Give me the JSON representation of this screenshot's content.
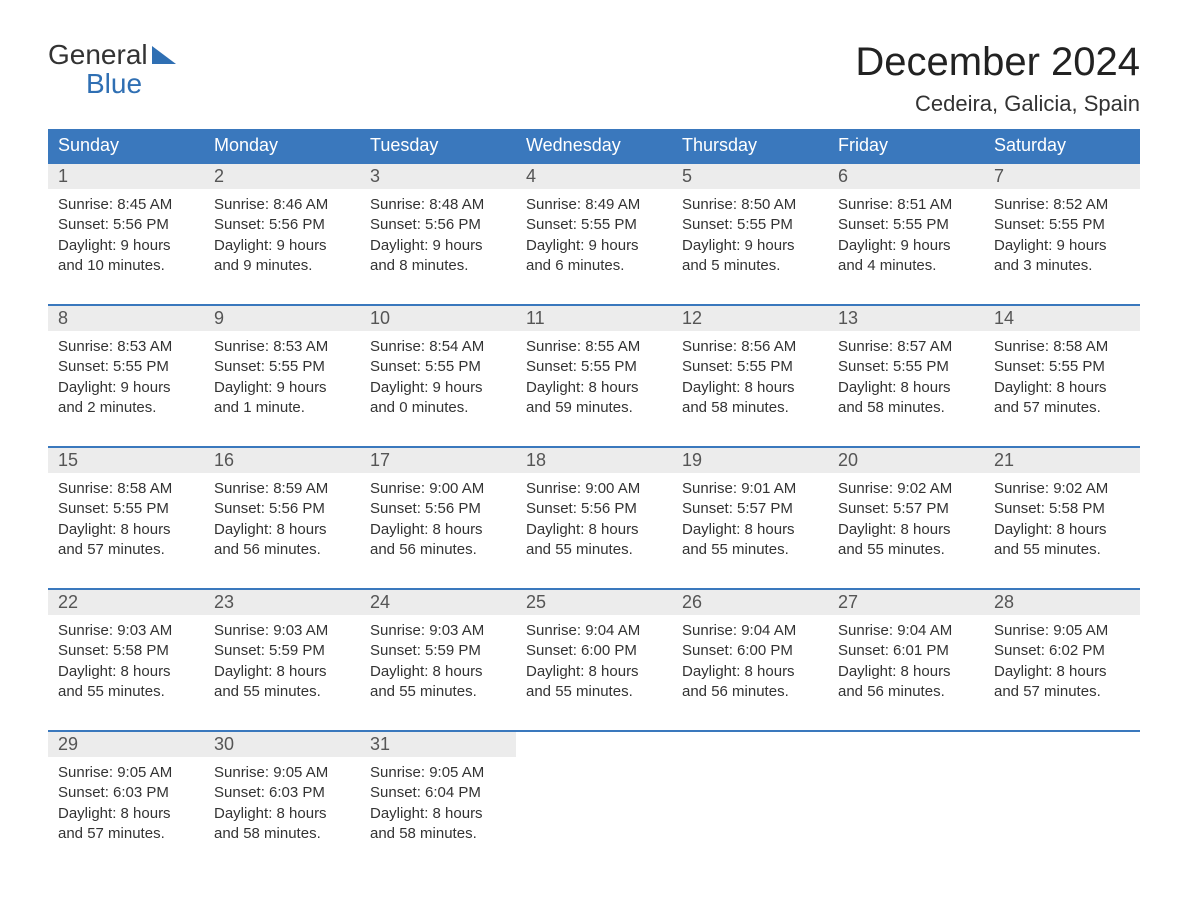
{
  "logo": {
    "line1": "General",
    "line2": "Blue"
  },
  "title": "December 2024",
  "location": "Cedeira, Galicia, Spain",
  "colors": {
    "header_bg": "#3a78bd",
    "header_text": "#ffffff",
    "daynum_bg": "#ececec",
    "cell_border": "#3a78bd",
    "text": "#333333",
    "background": "#ffffff"
  },
  "weekdays": [
    "Sunday",
    "Monday",
    "Tuesday",
    "Wednesday",
    "Thursday",
    "Friday",
    "Saturday"
  ],
  "days": [
    {
      "n": 1,
      "sunrise": "8:45 AM",
      "sunset": "5:56 PM",
      "daylight": "9 hours and 10 minutes."
    },
    {
      "n": 2,
      "sunrise": "8:46 AM",
      "sunset": "5:56 PM",
      "daylight": "9 hours and 9 minutes."
    },
    {
      "n": 3,
      "sunrise": "8:48 AM",
      "sunset": "5:56 PM",
      "daylight": "9 hours and 8 minutes."
    },
    {
      "n": 4,
      "sunrise": "8:49 AM",
      "sunset": "5:55 PM",
      "daylight": "9 hours and 6 minutes."
    },
    {
      "n": 5,
      "sunrise": "8:50 AM",
      "sunset": "5:55 PM",
      "daylight": "9 hours and 5 minutes."
    },
    {
      "n": 6,
      "sunrise": "8:51 AM",
      "sunset": "5:55 PM",
      "daylight": "9 hours and 4 minutes."
    },
    {
      "n": 7,
      "sunrise": "8:52 AM",
      "sunset": "5:55 PM",
      "daylight": "9 hours and 3 minutes."
    },
    {
      "n": 8,
      "sunrise": "8:53 AM",
      "sunset": "5:55 PM",
      "daylight": "9 hours and 2 minutes."
    },
    {
      "n": 9,
      "sunrise": "8:53 AM",
      "sunset": "5:55 PM",
      "daylight": "9 hours and 1 minute."
    },
    {
      "n": 10,
      "sunrise": "8:54 AM",
      "sunset": "5:55 PM",
      "daylight": "9 hours and 0 minutes."
    },
    {
      "n": 11,
      "sunrise": "8:55 AM",
      "sunset": "5:55 PM",
      "daylight": "8 hours and 59 minutes."
    },
    {
      "n": 12,
      "sunrise": "8:56 AM",
      "sunset": "5:55 PM",
      "daylight": "8 hours and 58 minutes."
    },
    {
      "n": 13,
      "sunrise": "8:57 AM",
      "sunset": "5:55 PM",
      "daylight": "8 hours and 58 minutes."
    },
    {
      "n": 14,
      "sunrise": "8:58 AM",
      "sunset": "5:55 PM",
      "daylight": "8 hours and 57 minutes."
    },
    {
      "n": 15,
      "sunrise": "8:58 AM",
      "sunset": "5:55 PM",
      "daylight": "8 hours and 57 minutes."
    },
    {
      "n": 16,
      "sunrise": "8:59 AM",
      "sunset": "5:56 PM",
      "daylight": "8 hours and 56 minutes."
    },
    {
      "n": 17,
      "sunrise": "9:00 AM",
      "sunset": "5:56 PM",
      "daylight": "8 hours and 56 minutes."
    },
    {
      "n": 18,
      "sunrise": "9:00 AM",
      "sunset": "5:56 PM",
      "daylight": "8 hours and 55 minutes."
    },
    {
      "n": 19,
      "sunrise": "9:01 AM",
      "sunset": "5:57 PM",
      "daylight": "8 hours and 55 minutes."
    },
    {
      "n": 20,
      "sunrise": "9:02 AM",
      "sunset": "5:57 PM",
      "daylight": "8 hours and 55 minutes."
    },
    {
      "n": 21,
      "sunrise": "9:02 AM",
      "sunset": "5:58 PM",
      "daylight": "8 hours and 55 minutes."
    },
    {
      "n": 22,
      "sunrise": "9:03 AM",
      "sunset": "5:58 PM",
      "daylight": "8 hours and 55 minutes."
    },
    {
      "n": 23,
      "sunrise": "9:03 AM",
      "sunset": "5:59 PM",
      "daylight": "8 hours and 55 minutes."
    },
    {
      "n": 24,
      "sunrise": "9:03 AM",
      "sunset": "5:59 PM",
      "daylight": "8 hours and 55 minutes."
    },
    {
      "n": 25,
      "sunrise": "9:04 AM",
      "sunset": "6:00 PM",
      "daylight": "8 hours and 55 minutes."
    },
    {
      "n": 26,
      "sunrise": "9:04 AM",
      "sunset": "6:00 PM",
      "daylight": "8 hours and 56 minutes."
    },
    {
      "n": 27,
      "sunrise": "9:04 AM",
      "sunset": "6:01 PM",
      "daylight": "8 hours and 56 minutes."
    },
    {
      "n": 28,
      "sunrise": "9:05 AM",
      "sunset": "6:02 PM",
      "daylight": "8 hours and 57 minutes."
    },
    {
      "n": 29,
      "sunrise": "9:05 AM",
      "sunset": "6:03 PM",
      "daylight": "8 hours and 57 minutes."
    },
    {
      "n": 30,
      "sunrise": "9:05 AM",
      "sunset": "6:03 PM",
      "daylight": "8 hours and 58 minutes."
    },
    {
      "n": 31,
      "sunrise": "9:05 AM",
      "sunset": "6:04 PM",
      "daylight": "8 hours and 58 minutes."
    }
  ],
  "labels": {
    "sunrise_prefix": "Sunrise: ",
    "sunset_prefix": "Sunset: ",
    "daylight_prefix": "Daylight: "
  },
  "layout": {
    "first_weekday_index": 0,
    "total_cells": 35,
    "columns": 7
  }
}
